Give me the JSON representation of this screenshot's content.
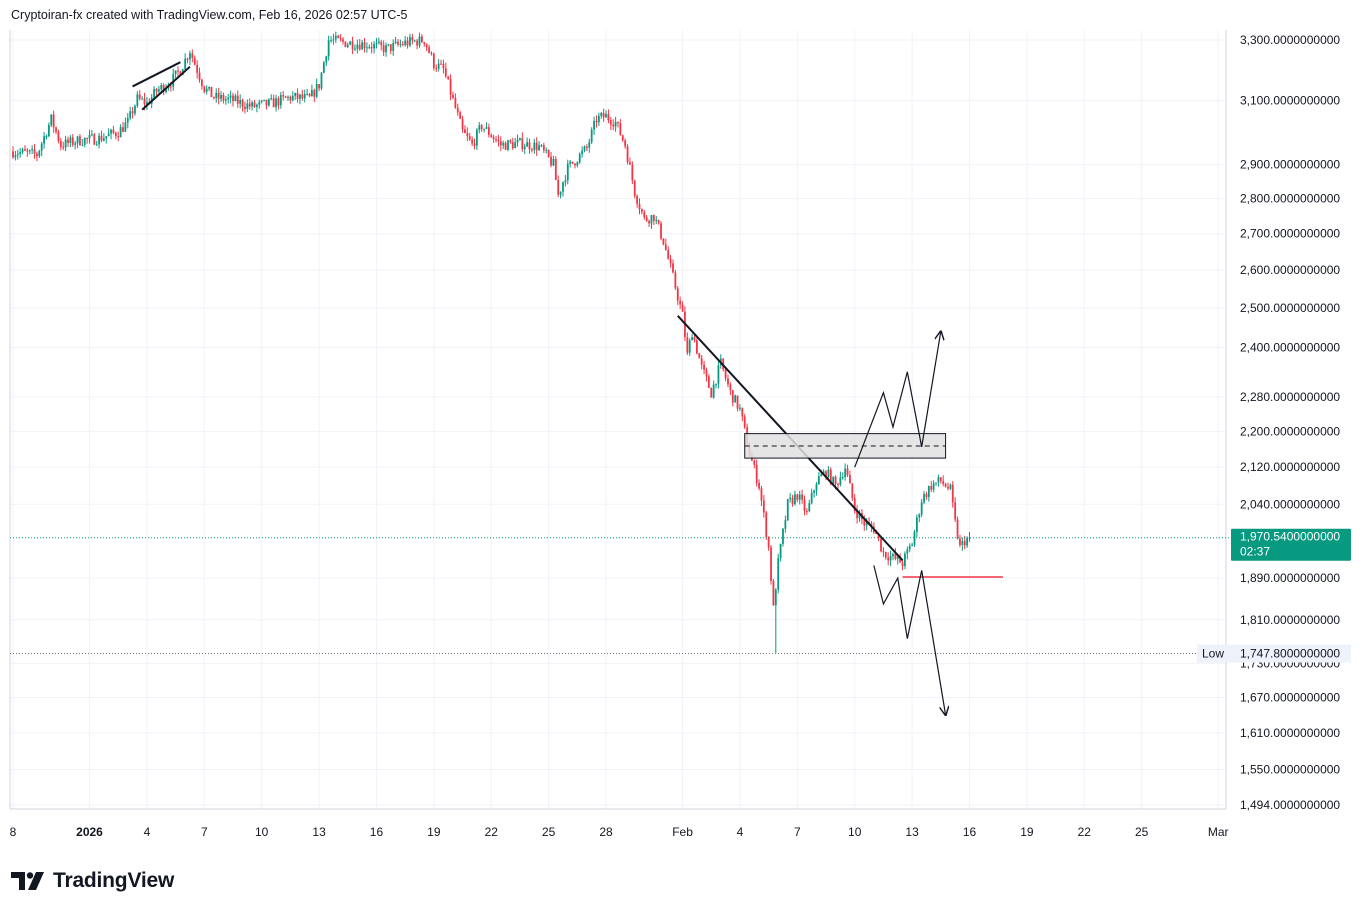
{
  "header": {
    "attribution": "Cryptoiran-fx created with TradingView.com, Feb 16, 2026 02:57 UTC-5"
  },
  "brand": {
    "name": "TradingView"
  },
  "colors": {
    "up": "#089981",
    "down": "#f23645",
    "grid": "#f0f3fa",
    "text": "#131722",
    "price_tag": "#089981",
    "low_tag": "#eef2fb",
    "support_line": "#f23645",
    "zone_fill": "#e0e0e0"
  },
  "chart_data": {
    "type": "candlestick",
    "scale": "log",
    "ylim": [
      1460,
      3360
    ],
    "y_ticks": [
      {
        "value": 3300,
        "label": "3,300.0000000000"
      },
      {
        "value": 3100,
        "label": "3,100.0000000000"
      },
      {
        "value": 2900,
        "label": "2,900.0000000000"
      },
      {
        "value": 2800,
        "label": "2,800.0000000000"
      },
      {
        "value": 2700,
        "label": "2,700.0000000000"
      },
      {
        "value": 2600,
        "label": "2,600.0000000000"
      },
      {
        "value": 2500,
        "label": "2,500.0000000000"
      },
      {
        "value": 2400,
        "label": "2,400.0000000000"
      },
      {
        "value": 2280,
        "label": "2,280.0000000000"
      },
      {
        "value": 2200,
        "label": "2,200.0000000000"
      },
      {
        "value": 2120,
        "label": "2,120.0000000000"
      },
      {
        "value": 2040,
        "label": "2,040.0000000000"
      },
      {
        "value": 1890,
        "label": "1,890.0000000000"
      },
      {
        "value": 1810,
        "label": "1,810.0000000000"
      },
      {
        "value": 1730,
        "label": "1,730.0000000000"
      },
      {
        "value": 1670,
        "label": "1,670.0000000000"
      },
      {
        "value": 1610,
        "label": "1,610.0000000000"
      },
      {
        "value": 1550,
        "label": "1,550.0000000000"
      },
      {
        "value": 1494,
        "label": "1,494.0000000000"
      }
    ],
    "x_start": "2025-12-28",
    "x_end": "2026-03-01",
    "x_ticks": [
      {
        "date": "2025-12-28",
        "label": "8"
      },
      {
        "date": "2026-01-01",
        "label": "2026",
        "bold": true
      },
      {
        "date": "2026-01-04",
        "label": "4"
      },
      {
        "date": "2026-01-07",
        "label": "7"
      },
      {
        "date": "2026-01-10",
        "label": "10"
      },
      {
        "date": "2026-01-13",
        "label": "13"
      },
      {
        "date": "2026-01-16",
        "label": "16"
      },
      {
        "date": "2026-01-19",
        "label": "19"
      },
      {
        "date": "2026-01-22",
        "label": "22"
      },
      {
        "date": "2026-01-25",
        "label": "25"
      },
      {
        "date": "2026-01-28",
        "label": "28"
      },
      {
        "date": "2026-02-01",
        "label": "Feb"
      },
      {
        "date": "2026-02-04",
        "label": "4"
      },
      {
        "date": "2026-02-07",
        "label": "7"
      },
      {
        "date": "2026-02-10",
        "label": "10"
      },
      {
        "date": "2026-02-13",
        "label": "13"
      },
      {
        "date": "2026-02-16",
        "label": "16"
      },
      {
        "date": "2026-02-19",
        "label": "19"
      },
      {
        "date": "2026-02-22",
        "label": "22"
      },
      {
        "date": "2026-02-25",
        "label": "25"
      },
      {
        "date": "2026-03-01",
        "label": "Mar"
      }
    ],
    "price_path": [
      [
        "2025-12-28 00:00",
        2940
      ],
      [
        "2025-12-29 06:00",
        2930
      ],
      [
        "2025-12-30 00:00",
        3040
      ],
      [
        "2025-12-30 12:00",
        2960
      ],
      [
        "2025-12-31 12:00",
        2975
      ],
      [
        "2026-01-01 12:00",
        2980
      ],
      [
        "2026-01-02 12:00",
        3000
      ],
      [
        "2026-01-03 00:00",
        3030
      ],
      [
        "2026-01-03 12:00",
        3105
      ],
      [
        "2026-01-04 00:00",
        3090
      ],
      [
        "2026-01-04 12:00",
        3130
      ],
      [
        "2026-01-05 06:00",
        3160
      ],
      [
        "2026-01-05 18:00",
        3200
      ],
      [
        "2026-01-06 06:00",
        3265
      ],
      [
        "2026-01-06 12:00",
        3220
      ],
      [
        "2026-01-07 00:00",
        3140
      ],
      [
        "2026-01-07 12:00",
        3110
      ],
      [
        "2026-01-08 12:00",
        3100
      ],
      [
        "2026-01-09 12:00",
        3080
      ],
      [
        "2026-01-10 12:00",
        3090
      ],
      [
        "2026-01-11 12:00",
        3110
      ],
      [
        "2026-01-12 12:00",
        3105
      ],
      [
        "2026-01-13 00:00",
        3150
      ],
      [
        "2026-01-13 12:00",
        3300
      ],
      [
        "2026-01-14 12:00",
        3290
      ],
      [
        "2026-01-15 12:00",
        3285
      ],
      [
        "2026-01-16 12:00",
        3270
      ],
      [
        "2026-01-17 12:00",
        3290
      ],
      [
        "2026-01-18 12:00",
        3300
      ],
      [
        "2026-01-19 00:00",
        3220
      ],
      [
        "2026-01-19 12:00",
        3200
      ],
      [
        "2026-01-20 00:00",
        3100
      ],
      [
        "2026-01-20 12:00",
        3000
      ],
      [
        "2026-01-21 00:00",
        2960
      ],
      [
        "2026-01-21 12:00",
        3020
      ],
      [
        "2026-01-22 00:00",
        2990
      ],
      [
        "2026-01-22 12:00",
        2960
      ],
      [
        "2026-01-23 12:00",
        2965
      ],
      [
        "2026-01-24 12:00",
        2955
      ],
      [
        "2026-01-25 06:00",
        2900
      ],
      [
        "2026-01-25 12:00",
        2810
      ],
      [
        "2026-01-26 00:00",
        2890
      ],
      [
        "2026-01-26 12:00",
        2920
      ],
      [
        "2026-01-27 00:00",
        2950
      ],
      [
        "2026-01-27 12:00",
        3040
      ],
      [
        "2026-01-28 00:00",
        3050
      ],
      [
        "2026-01-28 12:00",
        3030
      ],
      [
        "2026-01-29 00:00",
        2960
      ],
      [
        "2026-01-29 12:00",
        2820
      ],
      [
        "2026-01-30 00:00",
        2740
      ],
      [
        "2026-01-30 12:00",
        2750
      ],
      [
        "2026-01-31 00:00",
        2680
      ],
      [
        "2026-01-31 12:00",
        2580
      ],
      [
        "2026-02-01 00:00",
        2480
      ],
      [
        "2026-02-01 06:00",
        2380
      ],
      [
        "2026-02-01 12:00",
        2440
      ],
      [
        "2026-02-02 00:00",
        2350
      ],
      [
        "2026-02-02 12:00",
        2290
      ],
      [
        "2026-02-03 00:00",
        2360
      ],
      [
        "2026-02-03 12:00",
        2290
      ],
      [
        "2026-02-04 00:00",
        2250
      ],
      [
        "2026-02-04 12:00",
        2150
      ],
      [
        "2026-02-05 00:00",
        2080
      ],
      [
        "2026-02-05 12:00",
        1950
      ],
      [
        "2026-02-05 18:00",
        1830
      ],
      [
        "2026-02-06 00:00",
        1920
      ],
      [
        "2026-02-06 12:00",
        2040
      ],
      [
        "2026-02-07 00:00",
        2060
      ],
      [
        "2026-02-07 12:00",
        2020
      ],
      [
        "2026-02-08 00:00",
        2090
      ],
      [
        "2026-02-08 12:00",
        2110
      ],
      [
        "2026-02-09 00:00",
        2080
      ],
      [
        "2026-02-09 12:00",
        2120
      ],
      [
        "2026-02-10 00:00",
        2030
      ],
      [
        "2026-02-10 12:00",
        2000
      ],
      [
        "2026-02-11 00:00",
        1990
      ],
      [
        "2026-02-11 12:00",
        1940
      ],
      [
        "2026-02-12 00:00",
        1930
      ],
      [
        "2026-02-12 12:00",
        1920
      ],
      [
        "2026-02-13 00:00",
        1960
      ],
      [
        "2026-02-13 12:00",
        2050
      ],
      [
        "2026-02-14 00:00",
        2080
      ],
      [
        "2026-02-14 12:00",
        2090
      ],
      [
        "2026-02-15 00:00",
        2070
      ],
      [
        "2026-02-15 06:00",
        2000
      ],
      [
        "2026-02-15 12:00",
        1950
      ],
      [
        "2026-02-15 18:00",
        1965
      ],
      [
        "2026-02-16 02:00",
        1970.54
      ]
    ],
    "candle_interval_hours": 3,
    "last_price": {
      "value": 1970.54,
      "label": "1,970.5400000000",
      "countdown": "02:37"
    },
    "low_line": {
      "value": 1747.8,
      "label": "1,747.8000000000",
      "tag": "Low"
    },
    "drawings": {
      "wedge_lines": [
        [
          [
            "2026-01-03 06:00",
            3145
          ],
          [
            "2026-01-05 18:00",
            3225
          ]
        ],
        [
          [
            "2026-01-03 18:00",
            3070
          ],
          [
            "2026-01-06 06:00",
            3210
          ]
        ]
      ],
      "trendline": [
        [
          "2026-01-31 18:00",
          2480
        ],
        [
          "2026-02-12 12:00",
          1925
        ]
      ],
      "zone": {
        "x": [
          "2026-02-04 06:00",
          "2026-02-14 18:00"
        ],
        "y": [
          2140,
          2195
        ],
        "mid": 2167
      },
      "support_line": {
        "x": [
          "2026-02-12 12:00",
          "2026-02-17 18:00"
        ],
        "value": 1892
      },
      "bull_path": [
        [
          "2026-02-10 00:00",
          2120
        ],
        [
          "2026-02-11 12:00",
          2290
        ],
        [
          "2026-02-12 00:00",
          2210
        ],
        [
          "2026-02-12 18:00",
          2340
        ],
        [
          "2026-02-13 12:00",
          2165
        ],
        [
          "2026-02-14 12:00",
          2440
        ]
      ],
      "bear_path": [
        [
          "2026-02-11 00:00",
          1915
        ],
        [
          "2026-02-11 12:00",
          1840
        ],
        [
          "2026-02-12 06:00",
          1890
        ],
        [
          "2026-02-12 18:00",
          1775
        ],
        [
          "2026-02-13 12:00",
          1905
        ],
        [
          "2026-02-14 18:00",
          1640
        ]
      ]
    }
  }
}
